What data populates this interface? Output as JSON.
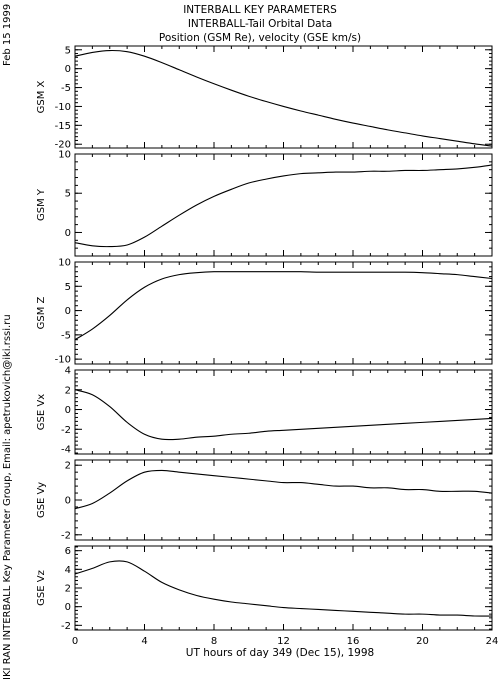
{
  "header": {
    "line1": "INTERBALL KEY PARAMETERS",
    "line2": "INTERBALL-Tail Orbital Data",
    "line3": "Position (GSM Re), velocity (GSE km/s)"
  },
  "side_date": "Feb 15 1999",
  "side_credit": "IKI RAN INTERBALL Key Parameter Group, Email: apetrukovich@iki.rssi.ru",
  "chart_data": {
    "type": "line",
    "xlabel": "UT hours of day 349 (Dec 15), 1998",
    "xlim": [
      0,
      24
    ],
    "xticks": [
      "0",
      "4",
      "8",
      "12",
      "16",
      "20",
      "24"
    ],
    "panels": [
      {
        "ylabel": "GSM X",
        "ylim": [
          -21,
          6
        ],
        "yticks": [
          "5",
          "0",
          "-5",
          "-10",
          "-15",
          "-20"
        ],
        "x": [
          0,
          1,
          2,
          3,
          4,
          5,
          6,
          7,
          8,
          9,
          10,
          11,
          12,
          13,
          14,
          15,
          16,
          17,
          18,
          19,
          20,
          21,
          22,
          23,
          24
        ],
        "values": [
          3.3,
          4.3,
          4.8,
          4.5,
          3.3,
          1.6,
          -0.3,
          -2.2,
          -4.0,
          -5.7,
          -7.3,
          -8.7,
          -10.0,
          -11.2,
          -12.3,
          -13.4,
          -14.4,
          -15.3,
          -16.2,
          -17.0,
          -17.8,
          -18.5,
          -19.2,
          -19.9,
          -20.5
        ]
      },
      {
        "ylabel": "GSM Y",
        "ylim": [
          -3,
          10
        ],
        "yticks": [
          "10",
          "5",
          "0"
        ],
        "x": [
          0,
          1,
          2,
          3,
          4,
          5,
          6,
          7,
          8,
          9,
          10,
          11,
          12,
          13,
          14,
          15,
          16,
          17,
          18,
          19,
          20,
          21,
          22,
          23,
          24
        ],
        "values": [
          -1.3,
          -1.7,
          -1.8,
          -1.6,
          -0.6,
          0.8,
          2.2,
          3.5,
          4.6,
          5.5,
          6.3,
          6.8,
          7.2,
          7.5,
          7.6,
          7.7,
          7.7,
          7.8,
          7.8,
          7.9,
          7.9,
          8.0,
          8.1,
          8.3,
          8.6
        ]
      },
      {
        "ylabel": "GSM Z",
        "ylim": [
          -11,
          10
        ],
        "yticks": [
          "10",
          "5",
          "0",
          "-5",
          "-10"
        ],
        "x": [
          0,
          1,
          2,
          3,
          4,
          5,
          6,
          7,
          8,
          9,
          10,
          11,
          12,
          13,
          14,
          15,
          16,
          17,
          18,
          19,
          20,
          21,
          22,
          23,
          24
        ],
        "values": [
          -6.0,
          -3.8,
          -1.0,
          2.2,
          4.8,
          6.5,
          7.4,
          7.8,
          8.0,
          8.0,
          8.0,
          8.0,
          8.0,
          8.0,
          7.9,
          7.9,
          7.9,
          7.9,
          7.9,
          7.9,
          7.8,
          7.6,
          7.4,
          7.0,
          6.6
        ]
      },
      {
        "ylabel": "GSE Vx",
        "ylim": [
          -4.5,
          4
        ],
        "yticks": [
          "4",
          "2",
          "0",
          "-2",
          "-4"
        ],
        "x": [
          0,
          1,
          2,
          3,
          4,
          5,
          6,
          7,
          8,
          9,
          10,
          11,
          12,
          13,
          14,
          15,
          16,
          17,
          18,
          19,
          20,
          21,
          22,
          23,
          24
        ],
        "values": [
          2.0,
          1.5,
          0.3,
          -1.3,
          -2.5,
          -3.0,
          -3.0,
          -2.8,
          -2.7,
          -2.5,
          -2.4,
          -2.2,
          -2.1,
          -2.0,
          -1.9,
          -1.8,
          -1.7,
          -1.6,
          -1.5,
          -1.4,
          -1.3,
          -1.2,
          -1.1,
          -1.0,
          -0.9
        ]
      },
      {
        "ylabel": "GSE Vy",
        "ylim": [
          -2.3,
          2.3
        ],
        "yticks": [
          "2",
          "0",
          "-2"
        ],
        "x": [
          0,
          1,
          2,
          3,
          4,
          5,
          6,
          7,
          8,
          9,
          10,
          11,
          12,
          13,
          14,
          15,
          16,
          17,
          18,
          19,
          20,
          21,
          22,
          23,
          24
        ],
        "values": [
          -0.5,
          -0.2,
          0.4,
          1.1,
          1.6,
          1.7,
          1.6,
          1.5,
          1.4,
          1.3,
          1.2,
          1.1,
          1.0,
          1.0,
          0.9,
          0.8,
          0.8,
          0.7,
          0.7,
          0.6,
          0.6,
          0.5,
          0.5,
          0.5,
          0.4
        ]
      },
      {
        "ylabel": "GSE Vz",
        "ylim": [
          -2.5,
          6.5
        ],
        "yticks": [
          "6",
          "4",
          "2",
          "0",
          "-2"
        ],
        "x": [
          0,
          1,
          2,
          3,
          4,
          5,
          6,
          7,
          8,
          9,
          10,
          11,
          12,
          13,
          14,
          15,
          16,
          17,
          18,
          19,
          20,
          21,
          22,
          23,
          24
        ],
        "values": [
          3.5,
          4.1,
          4.8,
          4.8,
          3.8,
          2.6,
          1.8,
          1.2,
          0.8,
          0.5,
          0.3,
          0.1,
          -0.1,
          -0.2,
          -0.3,
          -0.4,
          -0.5,
          -0.6,
          -0.7,
          -0.8,
          -0.8,
          -0.9,
          -0.9,
          -1.0,
          -1.0
        ]
      }
    ]
  }
}
